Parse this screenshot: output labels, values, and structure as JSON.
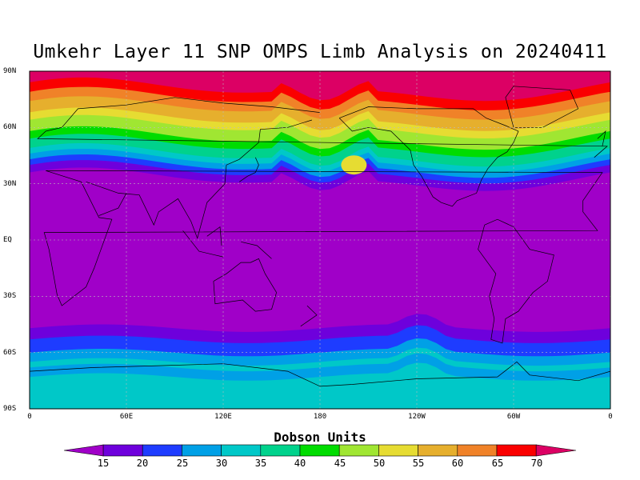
{
  "title": "Umkehr Layer 11 SNP OMPS Limb Analysis on 20240411",
  "lat_labels": [
    "90N",
    "60N",
    "30N",
    "EQ",
    "30S",
    "60S",
    "90S"
  ],
  "lon_labels": [
    "0",
    "60E",
    "120E",
    "180",
    "120W",
    "60W",
    "0"
  ],
  "colorbar": {
    "title": "Dobson Units",
    "ticks": [
      "15",
      "20",
      "25",
      "30",
      "35",
      "40",
      "45",
      "50",
      "55",
      "60",
      "65",
      "70"
    ],
    "colors": [
      "#a000c8",
      "#6e00dc",
      "#1e3cff",
      "#00a0e6",
      "#00c8c8",
      "#00d28c",
      "#00dc00",
      "#a0e632",
      "#e6dc32",
      "#e6af2d",
      "#f08228",
      "#fa0000",
      "#dc0064"
    ]
  }
}
